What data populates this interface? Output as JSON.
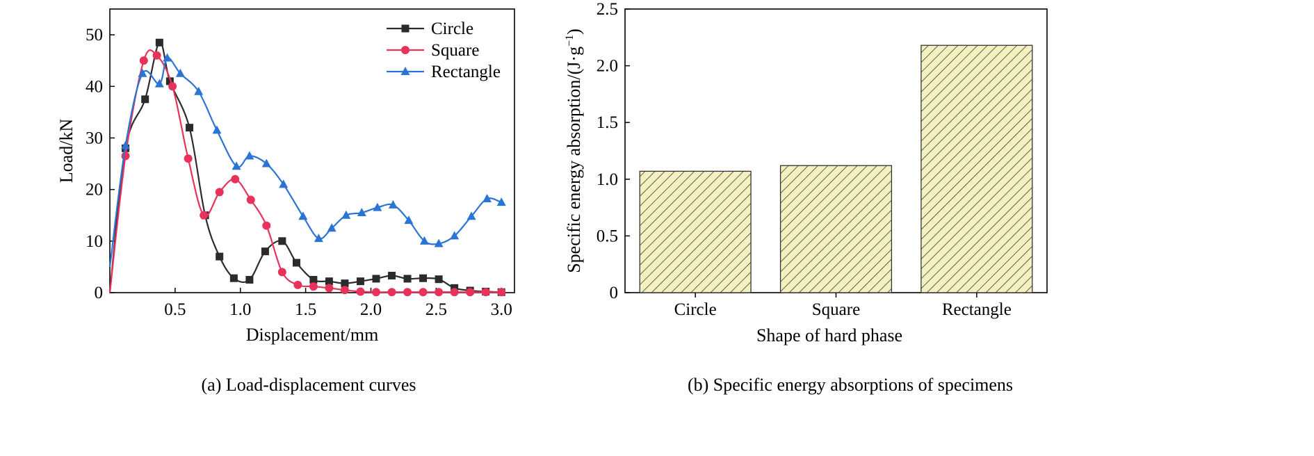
{
  "figure": {
    "caption_a": "(a) Load-displacement curves",
    "caption_b": "(b) Specific energy absorptions of specimens"
  },
  "chart_data": [
    {
      "type": "line",
      "xlabel": "Displacement/mm",
      "ylabel": "Load/kN",
      "xlim": [
        0,
        3.1
      ],
      "ylim": [
        0,
        55
      ],
      "xticks": [
        0.5,
        1.0,
        1.5,
        2.0,
        2.5,
        3.0
      ],
      "xtick_labels": [
        "0.5",
        "1.0",
        "1.5",
        "2.0",
        "2.5",
        "3.0"
      ],
      "yticks": [
        0,
        10,
        20,
        30,
        40,
        50
      ],
      "ytick_labels": [
        "0",
        "10",
        "20",
        "30",
        "40",
        "50"
      ],
      "legend_position": "top-right",
      "series": [
        {
          "name": "Circle",
          "color": "#2b2b2b",
          "marker": "square",
          "x": [
            0,
            0.12,
            0.27,
            0.38,
            0.46,
            0.61,
            0.73,
            0.84,
            0.95,
            1.07,
            1.19,
            1.32,
            1.43,
            1.56,
            1.68,
            1.8,
            1.92,
            2.04,
            2.16,
            2.28,
            2.4,
            2.52,
            2.64,
            2.76,
            2.88,
            3.0
          ],
          "y": [
            0,
            28,
            37.5,
            48.5,
            41,
            32,
            15,
            7,
            2.8,
            2.5,
            8,
            10,
            5.8,
            2.5,
            2.2,
            1.8,
            2.2,
            2.7,
            3.3,
            2.7,
            2.8,
            2.6,
            0.9,
            0.4,
            0.2,
            0.1
          ]
        },
        {
          "name": "Square",
          "color": "#e8325a",
          "marker": "circle",
          "x": [
            0,
            0.12,
            0.26,
            0.36,
            0.48,
            0.6,
            0.72,
            0.84,
            0.96,
            1.08,
            1.2,
            1.32,
            1.44,
            1.56,
            1.68,
            1.8,
            1.92,
            2.04,
            2.16,
            2.28,
            2.4,
            2.52,
            2.64,
            2.76,
            2.88,
            3.0
          ],
          "y": [
            0,
            26.5,
            45,
            46,
            40,
            26,
            15,
            19.5,
            22,
            18,
            13,
            4,
            1.5,
            1.2,
            0.9,
            0.5,
            0.2,
            0.1,
            0.1,
            0.1,
            0.1,
            0.1,
            0.1,
            0.1,
            0.1,
            0.1
          ]
        },
        {
          "name": "Rectangle",
          "color": "#2a74d4",
          "marker": "triangle",
          "x": [
            0,
            0.12,
            0.25,
            0.38,
            0.44,
            0.54,
            0.68,
            0.82,
            0.97,
            1.07,
            1.2,
            1.33,
            1.48,
            1.6,
            1.7,
            1.81,
            1.93,
            2.05,
            2.17,
            2.29,
            2.41,
            2.52,
            2.64,
            2.77,
            2.89,
            3.0
          ],
          "y": [
            5,
            28.5,
            42.5,
            40.5,
            45.5,
            42.5,
            39,
            31.5,
            24.5,
            26.5,
            25,
            21,
            14.8,
            10.5,
            12.5,
            15,
            15.5,
            16.5,
            17,
            14,
            10,
            9.5,
            11,
            14.8,
            18.2,
            17.5
          ]
        }
      ]
    },
    {
      "type": "bar",
      "xlabel": "Shape of hard phase",
      "ylabel": "Specific energy absorption/(J·g",
      "ylabel_superscript": "−1",
      "ylabel_suffix": ")",
      "categories": [
        "Circle",
        "Square",
        "Rectangle"
      ],
      "values": [
        1.07,
        1.12,
        2.18
      ],
      "ylim": [
        0,
        2.5
      ],
      "yticks": [
        0,
        0.5,
        1.0,
        1.5,
        2.0,
        2.5
      ],
      "ytick_labels": [
        "0",
        "0.5",
        "1.0",
        "1.5",
        "2.0",
        "2.5"
      ],
      "bar_fill": "#f4f0bf",
      "bar_hatch_color": "#3a3a3a"
    }
  ]
}
